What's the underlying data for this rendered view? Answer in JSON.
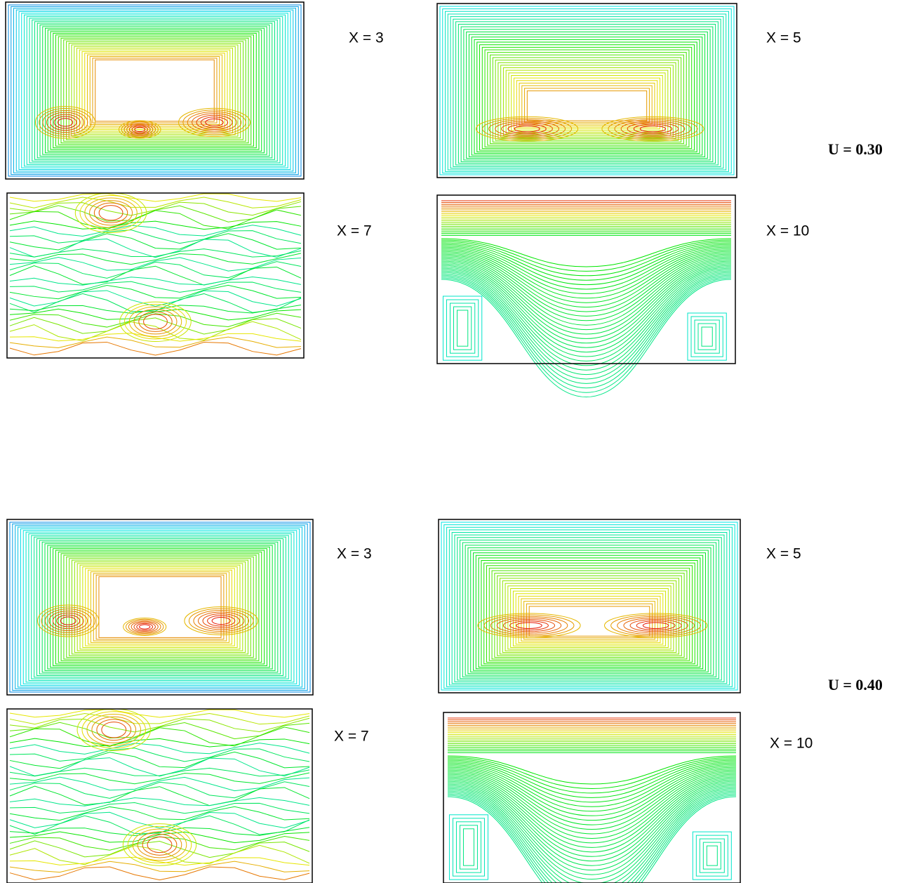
{
  "groups": [
    {
      "label": "U = 0.30",
      "panels": [
        {
          "label": "X = 3"
        },
        {
          "label": "X = 5"
        },
        {
          "label": "X = 7"
        },
        {
          "label": "X = 10"
        }
      ]
    },
    {
      "label": "U = 0.40",
      "panels": [
        {
          "label": "X = 3"
        },
        {
          "label": "X = 5"
        },
        {
          "label": "X = 7"
        },
        {
          "label": "X = 10"
        }
      ]
    }
  ]
}
